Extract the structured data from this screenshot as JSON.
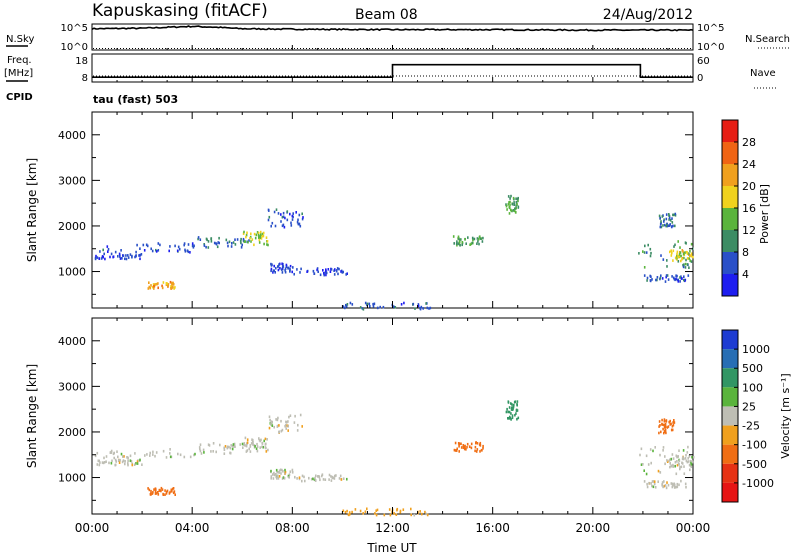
{
  "header": {
    "station": "Kapuskasing (fitACF)",
    "beam": "Beam 08",
    "date": "24/Aug/2012"
  },
  "params_panel": {
    "left_label_top": "N.Sky",
    "left_label_freq": "Freq.",
    "left_label_freq_unit": "[MHz]",
    "left_label_cpid": "CPID",
    "right_label_top": "N.Search",
    "right_label_nave": "Nave",
    "nsky_ticks": [
      "10^5",
      "10^0"
    ],
    "nsearch_ticks": [
      "10^5",
      "10^0"
    ],
    "freq_ticks": [
      "18",
      "8"
    ],
    "nave_ticks": [
      "60",
      "0"
    ],
    "cpid_text": "tau (fast) 503"
  },
  "colors": {
    "power_scale": [
      "#1e1ef0",
      "#2a50c8",
      "#3c8c64",
      "#5ab43c",
      "#f0d21e",
      "#f0a01e",
      "#f06414",
      "#e61e14"
    ],
    "velocity_scale": [
      "#1e3cd2",
      "#286eb4",
      "#329664",
      "#5ab43c",
      "#bebeb4",
      "#f0a01e",
      "#f06e14",
      "#e63214",
      "#e61414"
    ],
    "gray_scatter": "#bebeb4"
  },
  "x_axis": {
    "label": "Time UT",
    "ticks": [
      "00:00",
      "04:00",
      "08:00",
      "12:00",
      "16:00",
      "20:00",
      "00:00"
    ]
  },
  "power_colorbar": {
    "label": "Power [dB]",
    "ticks": [
      "4",
      "8",
      "12",
      "16",
      "20",
      "24",
      "28"
    ]
  },
  "velocity_colorbar": {
    "label": "Velocity [m s⁻¹]",
    "ticks": [
      "-1000",
      "-500",
      "-100",
      "-25",
      "25",
      "100",
      "500",
      "1000"
    ]
  },
  "chart_data": [
    {
      "type": "line",
      "panel": "noise",
      "x": [
        0,
        2,
        3.5,
        4,
        5,
        6,
        8,
        12,
        16,
        20,
        24
      ],
      "series": [
        {
          "values": [
            4.5,
            4.6,
            4.9,
            5.0,
            4.8,
            4.5,
            4.4,
            4.3,
            4.3,
            4.2,
            4.2
          ]
        }
      ],
      "xlim": [
        0,
        24
      ]
    },
    {
      "type": "line",
      "panel": "frequency",
      "x": [
        0,
        12,
        12,
        21.9,
        21.9,
        24
      ],
      "series": [
        {
          "values": [
            10,
            10,
            16.6,
            16.6,
            10,
            10
          ]
        }
      ],
      "xlim": [
        0,
        24
      ],
      "ylim": [
        8,
        18
      ]
    },
    {
      "type": "heatmap",
      "panel": "power",
      "xlabel": "Time UT",
      "ylabel": "Slant Range [km]",
      "xlim": [
        0,
        24
      ],
      "ylim": [
        200,
        4500
      ],
      "yticks": [
        1000,
        2000,
        3000,
        4000
      ],
      "colorbar_range": [
        0,
        32
      ],
      "regions": [
        {
          "t0": 0.1,
          "t1": 4.2,
          "r0": 1450,
          "r1": 1650,
          "v": 6
        },
        {
          "t0": 4.2,
          "t1": 6.3,
          "r0": 1550,
          "r1": 1780,
          "v": 8
        },
        {
          "t0": 6.0,
          "t1": 7.0,
          "r0": 1600,
          "r1": 1900,
          "v": 16
        },
        {
          "t0": 7.0,
          "t1": 8.4,
          "r0": 2000,
          "r1": 2400,
          "v": 6
        },
        {
          "t0": 0.1,
          "t1": 2.0,
          "r0": 1300,
          "r1": 1420,
          "v": 5
        },
        {
          "t0": 2.2,
          "t1": 3.3,
          "r0": 650,
          "r1": 800,
          "v": 22
        },
        {
          "t0": 7.1,
          "t1": 8.0,
          "r0": 1000,
          "r1": 1200,
          "v": 5
        },
        {
          "t0": 8.0,
          "t1": 10.2,
          "r0": 950,
          "r1": 1100,
          "v": 5
        },
        {
          "t0": 10.0,
          "t1": 13.5,
          "r0": 200,
          "r1": 350,
          "v": 6
        },
        {
          "t0": 14.4,
          "t1": 15.6,
          "r0": 1600,
          "r1": 1800,
          "v": 12
        },
        {
          "t0": 16.5,
          "t1": 17.0,
          "r0": 2300,
          "r1": 2700,
          "v": 12
        },
        {
          "t0": 21.8,
          "t1": 24.0,
          "r0": 1100,
          "r1": 1700,
          "v": 10
        },
        {
          "t0": 23.0,
          "t1": 24.0,
          "r0": 1250,
          "r1": 1500,
          "v": 18
        },
        {
          "t0": 22.0,
          "t1": 23.8,
          "r0": 800,
          "r1": 950,
          "v": 6
        },
        {
          "t0": 22.6,
          "t1": 23.3,
          "r0": 2000,
          "r1": 2300,
          "v": 8
        }
      ]
    },
    {
      "type": "heatmap",
      "panel": "velocity",
      "xlabel": "Time UT",
      "ylabel": "Slant Range [km]",
      "xlim": [
        0,
        24
      ],
      "ylim": [
        200,
        4500
      ],
      "yticks": [
        1000,
        2000,
        3000,
        4000
      ],
      "colorbar_range": [
        -1000,
        1000
      ],
      "regions": [
        {
          "t0": 0.1,
          "t1": 4.2,
          "r0": 1450,
          "r1": 1650,
          "v": 0
        },
        {
          "t0": 4.2,
          "t1": 6.3,
          "r0": 1550,
          "r1": 1780,
          "v": 0
        },
        {
          "t0": 6.0,
          "t1": 7.0,
          "r0": 1600,
          "r1": 1900,
          "v": 0
        },
        {
          "t0": 7.0,
          "t1": 8.4,
          "r0": 2000,
          "r1": 2400,
          "v": 0
        },
        {
          "t0": 0.1,
          "t1": 2.0,
          "r0": 1300,
          "r1": 1420,
          "v": 0
        },
        {
          "t0": 2.2,
          "t1": 3.3,
          "r0": 650,
          "r1": 800,
          "v": -300
        },
        {
          "t0": 7.1,
          "t1": 8.0,
          "r0": 1000,
          "r1": 1200,
          "v": 0
        },
        {
          "t0": 8.0,
          "t1": 10.2,
          "r0": 950,
          "r1": 1100,
          "v": 0
        },
        {
          "t0": 10.0,
          "t1": 13.5,
          "r0": 200,
          "r1": 350,
          "v": -50
        },
        {
          "t0": 14.4,
          "t1": 15.6,
          "r0": 1600,
          "r1": 1800,
          "v": -200
        },
        {
          "t0": 16.5,
          "t1": 17.0,
          "r0": 2300,
          "r1": 2700,
          "v": 150
        },
        {
          "t0": 21.8,
          "t1": 24.0,
          "r0": 1100,
          "r1": 1700,
          "v": 0
        },
        {
          "t0": 23.0,
          "t1": 24.0,
          "r0": 1250,
          "r1": 1500,
          "v": 0
        },
        {
          "t0": 22.0,
          "t1": 23.8,
          "r0": 800,
          "r1": 950,
          "v": 0
        },
        {
          "t0": 22.6,
          "t1": 23.3,
          "r0": 2000,
          "r1": 2300,
          "v": -150
        }
      ]
    }
  ]
}
